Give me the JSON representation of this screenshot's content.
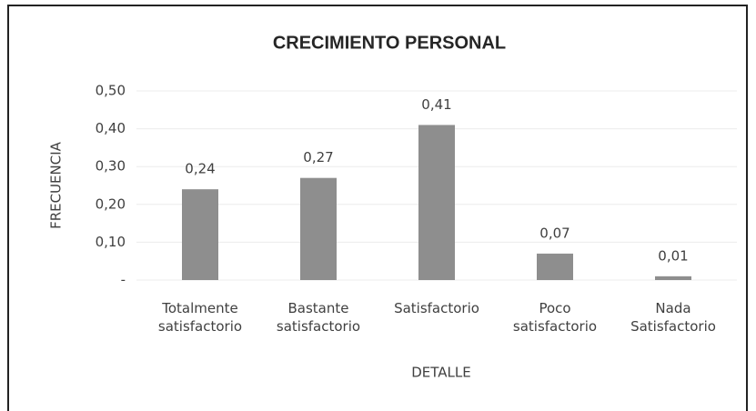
{
  "chart_data": {
    "type": "bar",
    "title": "CRECIMIENTO PERSONAL",
    "y_label": "FRECUENCIA",
    "x_label": "DETALLE",
    "categories": [
      "Totalmente satisfactorio",
      "Bastante satisfactorio",
      "Satisfactorio",
      "Poco satisfactorio",
      "Nada Satisfactorio"
    ],
    "values": [
      0.24,
      0.27,
      0.41,
      0.07,
      0.01
    ],
    "value_labels": [
      "0,24",
      "0,27",
      "0,41",
      "0,07",
      "0,01"
    ],
    "color": "#8e8e8e",
    "ylim": [
      0,
      0.5
    ],
    "yticks": [
      {
        "value": 0,
        "label": "-"
      },
      {
        "value": 0.1,
        "label": "0,10"
      },
      {
        "value": 0.2,
        "label": "0,20"
      },
      {
        "value": 0.3,
        "label": "0,30"
      },
      {
        "value": 0.4,
        "label": "0,40"
      },
      {
        "value": 0.5,
        "label": "0,50"
      }
    ],
    "grid": true
  }
}
